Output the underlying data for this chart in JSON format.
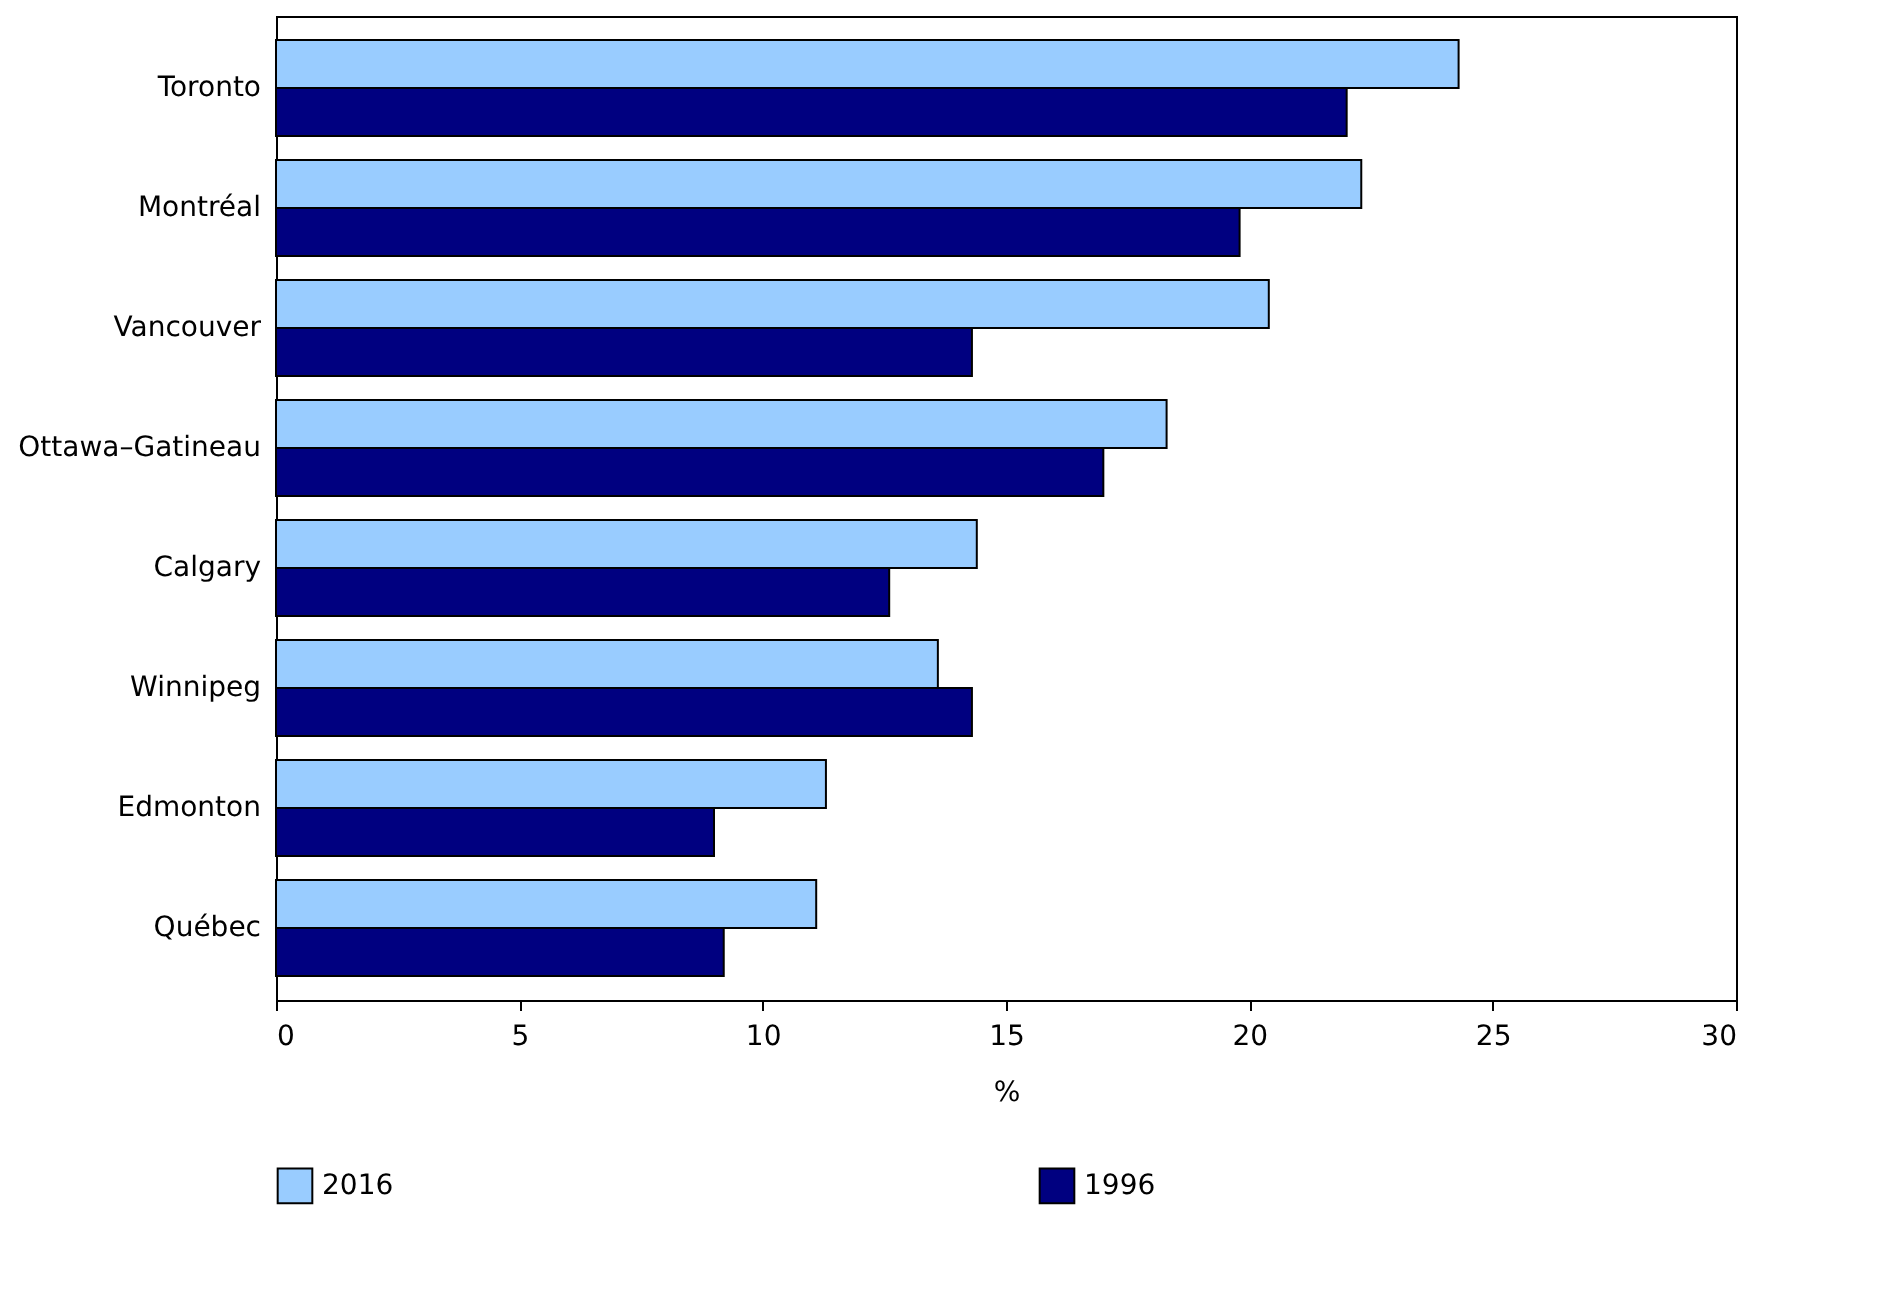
{
  "chart_data": {
    "type": "bar",
    "orientation": "horizontal",
    "xlabel": "%",
    "categories": [
      "Toronto",
      "Montréal",
      "Vancouver",
      "Ottawa–Gatineau",
      "Calgary",
      "Winnipeg",
      "Edmonton",
      "Québec"
    ],
    "series": [
      {
        "name": "2016",
        "color": "#99ccff",
        "values": [
          24.3,
          22.3,
          20.4,
          18.3,
          14.4,
          13.6,
          11.3,
          11.1
        ]
      },
      {
        "name": "1996",
        "color": "#000080",
        "values": [
          22.0,
          19.8,
          14.3,
          17.0,
          12.6,
          14.3,
          9.0,
          9.2
        ]
      }
    ],
    "xlim": [
      0,
      30
    ],
    "xticks": [
      0,
      5,
      10,
      15,
      20,
      25,
      30
    ],
    "grid": false,
    "legend": "bottom"
  }
}
